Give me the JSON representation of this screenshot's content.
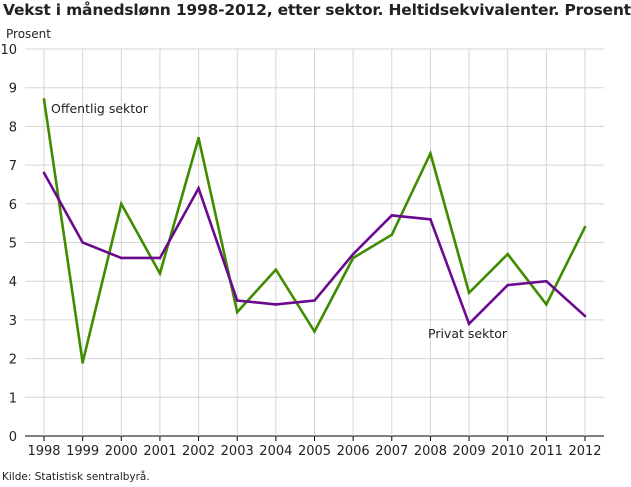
{
  "title": "Vekst i månedslønn 1998-2012, etter sektor. Heltidsekvivalenter. Prosent",
  "source": "Kilde: Statistisk sentralbyrå.",
  "chart_data": {
    "type": "line",
    "title": "Vekst i månedslønn 1998-2012, etter sektor. Heltidsekvivalenter. Prosent",
    "ylabel": "Prosent",
    "xlabel": "",
    "ylim": [
      0,
      10
    ],
    "yticks": [
      0,
      1,
      2,
      3,
      4,
      5,
      6,
      7,
      8,
      9,
      10
    ],
    "grid": true,
    "categories": [
      "1998",
      "1999",
      "2000",
      "2001",
      "2002",
      "2003",
      "2004",
      "2005",
      "2006",
      "2007",
      "2008",
      "2009",
      "2010",
      "2011",
      "2012"
    ],
    "series": [
      {
        "name": "Offentlig sektor",
        "color": "#3f8c00",
        "values": [
          8.7,
          1.9,
          6.0,
          4.2,
          7.7,
          3.2,
          4.3,
          2.7,
          4.6,
          5.2,
          7.3,
          3.7,
          4.7,
          3.4,
          5.4
        ]
      },
      {
        "name": "Privat sektor",
        "color": "#6b0a8e",
        "values": [
          6.8,
          5.0,
          4.6,
          4.6,
          6.4,
          3.5,
          3.4,
          3.5,
          4.7,
          5.7,
          5.6,
          2.9,
          3.9,
          4.0,
          3.1
        ]
      }
    ]
  }
}
